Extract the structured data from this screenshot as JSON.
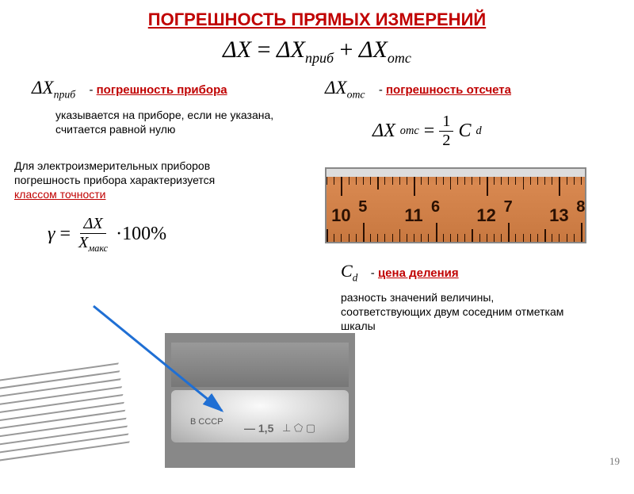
{
  "title": "ПОГРЕШНОСТЬ ПРЯМЫХ ИЗМЕРЕНИЙ",
  "page_number": "19",
  "main_formula": {
    "lhs": "ΔX",
    "eq": "=",
    "r1": "ΔX",
    "r1_sub": "приб",
    "plus": "+",
    "r2": "ΔX",
    "r2_sub": "отс"
  },
  "left": {
    "sym": "ΔX",
    "sym_sub": "приб",
    "dash": "- ",
    "label": "погрешность прибора",
    "desc1": "указывается на приборе, если не указана, считается равной нулю",
    "desc2_pre": "Для электроизмерительных приборов погрешность прибора характеризуется ",
    "desc2_red": "классом точности ",
    "gamma_formula": {
      "g": "γ",
      "eq": "=",
      "num": "ΔX",
      "den_base": "X",
      "den_sub": "макс",
      "tail": "·100%"
    }
  },
  "right": {
    "sym": "ΔX",
    "sym_sub": "отс",
    "dash": "- ",
    "label": "погрешность отсчета",
    "ots_formula": {
      "lhs": "ΔX",
      "lhs_sub": "отс",
      "eq": "=",
      "num": "1",
      "den": "2",
      "tail": "C",
      "tail_sub": "d"
    },
    "cd_sym": "C",
    "cd_sub": "d",
    "cd_dash": "- ",
    "cd_label": "цена деления",
    "cd_desc": "разность значений величины, соответствующих двум соседним отметкам шкалы"
  },
  "ruler": {
    "top_numbers": [
      "10",
      "11",
      "12",
      "13"
    ],
    "bottom_numbers": [
      "5",
      "6",
      "7",
      "8"
    ],
    "bg_color": "#d88850"
  },
  "photo": {
    "country": "В СССР",
    "acc": "— 1,5",
    "symbols": "⊥  ⬠  ▢"
  },
  "colors": {
    "red": "#c00000",
    "arrow": "#1f6fd4"
  }
}
